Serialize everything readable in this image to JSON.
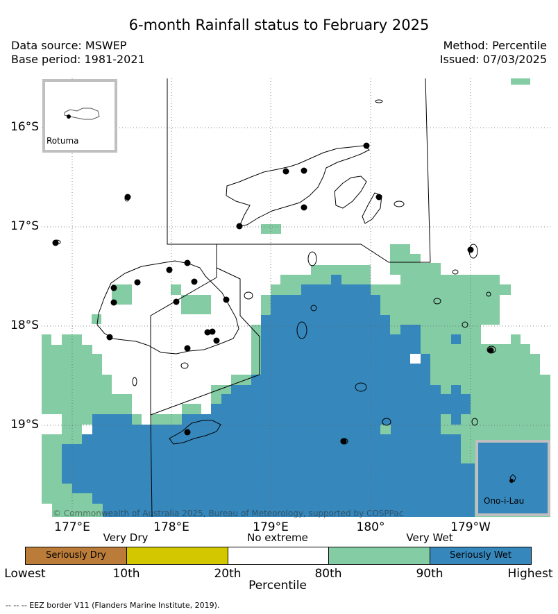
{
  "title": "6-month Rainfall status to February 2025",
  "meta": {
    "source": "Data source: MSWEP",
    "base_period": "Base period: 1981-2021",
    "method": "Method: Percentile",
    "issued": "Issued: 07/03/2025"
  },
  "axes": {
    "lon_labels": [
      "177°E",
      "178°E",
      "179°E",
      "180°",
      "179°W"
    ],
    "lat_labels": [
      "16°S",
      "17°S",
      "18°S",
      "19°S"
    ]
  },
  "insets": {
    "rotuma": "Rotuma",
    "ono": "Ono-i-Lau"
  },
  "legend": {
    "category_labels": [
      "Very Dry",
      "No extreme",
      "Very Wet"
    ],
    "boxes": [
      {
        "label": "Seriously Dry",
        "color": "#bb7c3a"
      },
      {
        "label": "",
        "color": "#d3c800"
      },
      {
        "label": "",
        "color": "#ffffff"
      },
      {
        "label": "",
        "color": "#84cca4"
      },
      {
        "label": "Seriously Wet",
        "color": "#3687bc"
      }
    ],
    "percentile_labels": [
      "Lowest",
      "10th",
      "20th",
      "80th",
      "90th",
      "Highest"
    ],
    "percentile_title": "Percentile"
  },
  "colors": {
    "very_wet": "#84cca4",
    "seriously_wet": "#3687bc"
  },
  "copyright": "© Commonwealth of Australia 2025, Bureau of Meteorology, supported by COSPPac",
  "eez_note": "--  --  -- EEZ border V11 (Flanders Marine Institute, 2019)."
}
